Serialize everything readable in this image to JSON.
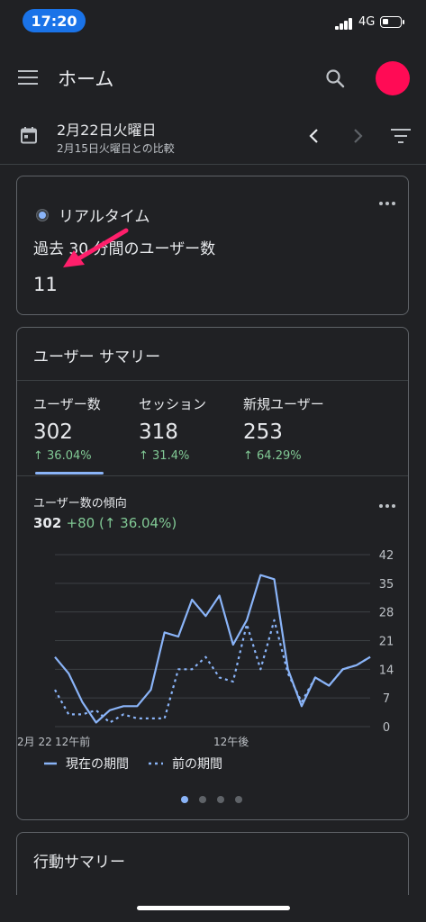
{
  "status": {
    "time": "17:20",
    "network": "4G"
  },
  "app_bar": {
    "title": "ホーム"
  },
  "date_bar": {
    "date": "2月22日火曜日",
    "compare": "2月15日火曜日との比較"
  },
  "realtime": {
    "title": "リアルタイム",
    "label": "過去 30 分間のユーザー数",
    "value": "11"
  },
  "summary": {
    "title": "ユーザー サマリー",
    "metrics": [
      {
        "label": "ユーザー数",
        "value": "302",
        "change": "↑ 36.04%"
      },
      {
        "label": "セッション",
        "value": "318",
        "change": "↑ 31.4%"
      },
      {
        "label": "新規ユーザー",
        "value": "253",
        "change": "↑ 64.29%"
      }
    ],
    "trend_title": "ユーザー数の傾向",
    "trend_value": "302",
    "trend_change": "+80 (↑ 36.04%)"
  },
  "behavior": {
    "title": "行動サマリー"
  },
  "colors": {
    "accent": "#8ab4f8",
    "positive": "#81c995",
    "avatar": "#ff0b55",
    "annotation_arrow": "#ff1f6b"
  },
  "chart_data": {
    "type": "line",
    "x_tick_labels": [
      "2月 22",
      "12午前",
      "12午後"
    ],
    "y_ticks": [
      0,
      7,
      14,
      21,
      28,
      35,
      42
    ],
    "ylim": [
      0,
      42
    ],
    "legend": "bottom",
    "grid": true,
    "series": [
      {
        "name": "現在の期間",
        "style": "solid",
        "values": [
          17,
          13,
          6,
          1,
          4,
          5,
          5,
          9,
          23,
          22,
          31,
          27,
          32,
          20,
          26,
          37,
          36,
          14,
          5,
          12,
          10,
          14,
          15,
          17
        ]
      },
      {
        "name": "前の期間",
        "style": "dotted",
        "values": [
          9,
          3,
          3,
          4,
          1,
          3,
          2,
          2,
          2,
          14,
          14,
          17,
          12,
          11,
          25,
          14,
          26,
          13,
          6,
          12,
          10,
          14,
          15,
          17
        ]
      }
    ]
  }
}
